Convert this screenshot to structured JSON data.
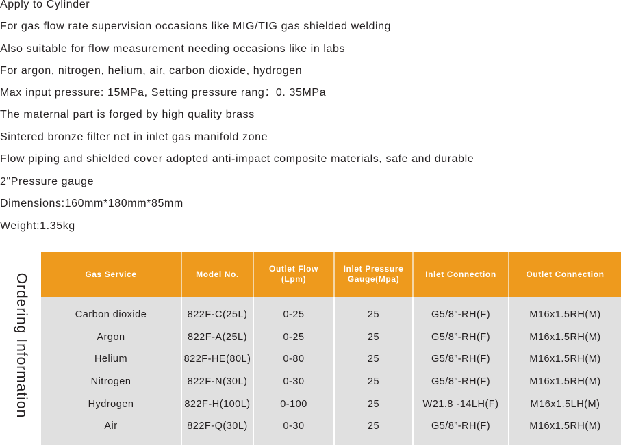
{
  "features": [
    "Apply to Cylinder",
    "For gas flow rate supervision occasions like MIG/TIG gas shielded welding",
    "Also suitable for flow measurement needing occasions like in labs",
    "For argon, nitrogen, helium, air, carbon dioxide, hydrogen",
    "Max input pressure: 15MPa, Setting pressure rang：0. 35MPa",
    "The maternal part is forged by high quality brass",
    "Sintered bronze filter net in inlet gas manifold zone",
    "Flow piping and shielded cover adopted anti-impact composite materials, safe and durable",
    "2\"Pressure gauge",
    "Dimensions:160mm*180mm*85mm",
    "Weight:1.35kg"
  ],
  "ordering": {
    "title": "Ordering Information",
    "accent_color": "#ee9a1d",
    "headers": [
      [
        "Gas Service"
      ],
      [
        "Model No."
      ],
      [
        "Outlet Flow",
        "(Lpm)"
      ],
      [
        "Inlet Pressure",
        "Gauge(Mpa)"
      ],
      [
        "Inlet Connection"
      ],
      [
        "Outlet Connection"
      ]
    ],
    "rows": [
      [
        "Carbon dioxide",
        "822F-C(25L)",
        "0-25",
        "25",
        "G5/8”-RH(F)",
        "M16x1.5RH(M)"
      ],
      [
        "Argon",
        "822F-A(25L)",
        "0-25",
        "25",
        "G5/8”-RH(F)",
        "M16x1.5RH(M)"
      ],
      [
        "Helium",
        "822F-HE(80L)",
        "0-80",
        "25",
        "G5/8”-RH(F)",
        "M16x1.5RH(M)"
      ],
      [
        "Nitrogen",
        "822F-N(30L)",
        "0-30",
        "25",
        "G5/8”-RH(F)",
        "M16x1.5RH(M)"
      ],
      [
        "Hydrogen",
        "822F-H(100L)",
        "0-100",
        "25",
        "W21.8 -14LH(F)",
        "M16x1.5LH(M)"
      ],
      [
        "Air",
        "822F-Q(30L)",
        "0-30",
        "25",
        "G5/8”-RH(F)",
        "M16x1.5RH(M)"
      ]
    ]
  }
}
